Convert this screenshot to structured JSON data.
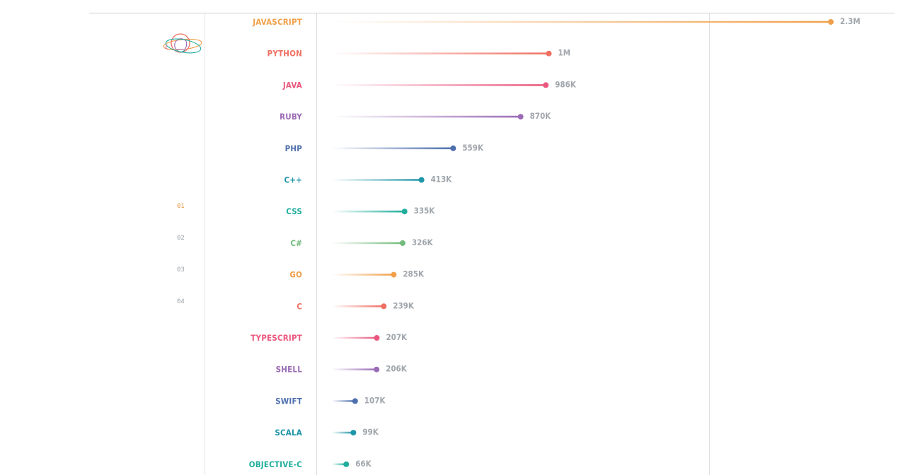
{
  "steps": [
    "01",
    "02",
    "03",
    "04"
  ],
  "active_step": "01",
  "chart_data": {
    "type": "lollipop",
    "orientation": "horizontal",
    "title": "",
    "xlabel": "",
    "ylabel": "",
    "xlim": [
      0,
      2300000
    ],
    "categories": [
      "JAVASCRIPT",
      "PYTHON",
      "JAVA",
      "RUBY",
      "PHP",
      "C++",
      "CSS",
      "C#",
      "GO",
      "C",
      "TYPESCRIPT",
      "SHELL",
      "SWIFT",
      "SCALA",
      "OBJECTIVE-C"
    ],
    "values": [
      2300000,
      1000000,
      986000,
      870000,
      559000,
      413000,
      335000,
      326000,
      285000,
      239000,
      207000,
      206000,
      107000,
      99000,
      66000
    ],
    "value_labels": [
      "2.3M",
      "1M",
      "986K",
      "870K",
      "559K",
      "413K",
      "335K",
      "326K",
      "285K",
      "239K",
      "207K",
      "206K",
      "107K",
      "99K",
      "66K"
    ],
    "colors": [
      "#f0a04b",
      "#ef7062",
      "#e9587e",
      "#9b6bb6",
      "#4d6fad",
      "#1f95a8",
      "#20ad9c",
      "#72bb7c",
      "#f0a04b",
      "#ef7062",
      "#e9587e",
      "#9b6bb6",
      "#4d6fad",
      "#1f95a8",
      "#20ad9c"
    ],
    "grid": false,
    "legend": "none"
  }
}
